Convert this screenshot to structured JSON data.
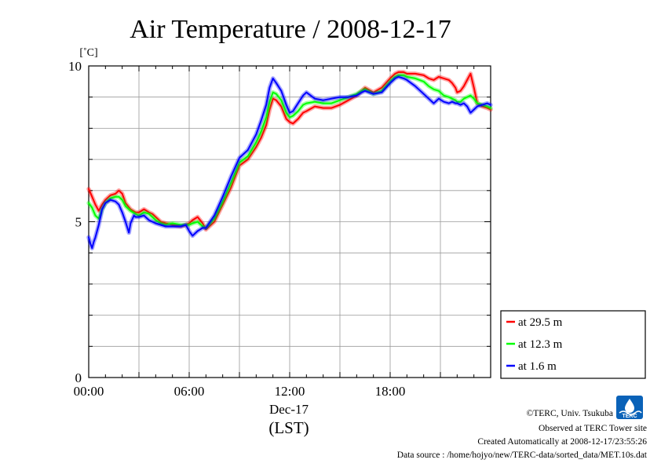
{
  "chart_data": {
    "type": "line",
    "title": "Air Temperature / 2008-12-17",
    "ylabel": "[˚C]",
    "xlabel_date": "Dec-17",
    "xlabel_unit": "(LST)",
    "ylim": [
      0,
      10
    ],
    "xlim": [
      0,
      24
    ],
    "x_ticks": [
      {
        "value": 0,
        "label": "00:00"
      },
      {
        "value": 6,
        "label": "06:00"
      },
      {
        "value": 12,
        "label": "12:00"
      },
      {
        "value": 18,
        "label": "18:00"
      }
    ],
    "y_ticks": [
      {
        "value": 0,
        "label": "0"
      },
      {
        "value": 5,
        "label": "5"
      },
      {
        "value": 10,
        "label": "10"
      }
    ],
    "grid": true,
    "legend_position": "lower-right-outside",
    "series": [
      {
        "name": "at 29.5 m",
        "color": "#ff0000",
        "x": [
          0,
          0.2,
          0.4,
          0.6,
          0.8,
          1,
          1.3,
          1.6,
          1.8,
          2,
          2.2,
          2.5,
          2.8,
          3,
          3.3,
          3.6,
          3.8,
          4,
          4.3,
          4.6,
          5,
          5.5,
          5.8,
          6,
          6.2,
          6.5,
          6.8,
          7,
          7.5,
          8,
          8.5,
          9,
          9.5,
          10,
          10.3,
          10.6,
          10.8,
          11,
          11.2,
          11.5,
          11.8,
          12,
          12.2,
          12.5,
          12.8,
          13,
          13.5,
          14,
          14.5,
          15,
          15.5,
          16,
          16.3,
          16.5,
          17,
          17.5,
          18,
          18.3,
          18.5,
          18.8,
          19,
          19.5,
          20,
          20.3,
          20.6,
          20.9,
          21.2,
          21.5,
          21.7,
          21.9,
          22,
          22.2,
          22.4,
          22.6,
          22.8,
          23,
          23.2,
          23.5,
          23.8,
          24
        ],
        "values": [
          6.05,
          5.8,
          5.55,
          5.35,
          5.55,
          5.7,
          5.85,
          5.9,
          6.0,
          5.9,
          5.6,
          5.4,
          5.3,
          5.3,
          5.4,
          5.3,
          5.25,
          5.15,
          5.0,
          4.95,
          4.9,
          4.85,
          4.9,
          4.95,
          5.05,
          5.15,
          4.95,
          4.75,
          5.0,
          5.55,
          6.1,
          6.8,
          7.0,
          7.4,
          7.7,
          8.1,
          8.6,
          8.95,
          8.9,
          8.7,
          8.3,
          8.2,
          8.15,
          8.3,
          8.5,
          8.55,
          8.7,
          8.65,
          8.65,
          8.75,
          8.9,
          9.05,
          9.2,
          9.3,
          9.15,
          9.3,
          9.6,
          9.75,
          9.8,
          9.8,
          9.75,
          9.75,
          9.7,
          9.6,
          9.55,
          9.65,
          9.6,
          9.55,
          9.45,
          9.3,
          9.15,
          9.2,
          9.35,
          9.55,
          9.75,
          9.3,
          8.8,
          8.7,
          8.65,
          8.6
        ]
      },
      {
        "name": "at 12.3 m",
        "color": "#00ff00",
        "x": [
          0,
          0.2,
          0.4,
          0.6,
          0.8,
          1,
          1.3,
          1.6,
          1.8,
          2,
          2.2,
          2.5,
          2.8,
          3,
          3.3,
          3.6,
          3.8,
          4,
          4.3,
          4.6,
          5,
          5.5,
          5.8,
          6,
          6.2,
          6.5,
          6.8,
          7,
          7.5,
          8,
          8.5,
          9,
          9.5,
          10,
          10.3,
          10.6,
          10.8,
          11,
          11.2,
          11.5,
          11.8,
          12,
          12.2,
          12.5,
          12.8,
          13,
          13.5,
          14,
          14.5,
          15,
          15.5,
          16,
          16.3,
          16.5,
          17,
          17.5,
          18,
          18.3,
          18.5,
          18.8,
          19,
          19.5,
          20,
          20.3,
          20.6,
          20.9,
          21.2,
          21.5,
          21.7,
          21.9,
          22,
          22.2,
          22.4,
          22.6,
          22.8,
          23,
          23.2,
          23.5,
          23.8,
          24
        ],
        "values": [
          5.6,
          5.45,
          5.2,
          5.1,
          5.4,
          5.6,
          5.75,
          5.8,
          5.8,
          5.7,
          5.5,
          5.35,
          5.25,
          5.2,
          5.3,
          5.25,
          5.15,
          5.05,
          4.95,
          4.9,
          4.95,
          4.9,
          4.9,
          4.9,
          4.95,
          5.0,
          4.85,
          4.8,
          5.1,
          5.65,
          6.25,
          6.9,
          7.1,
          7.55,
          7.9,
          8.35,
          8.85,
          9.15,
          9.1,
          8.9,
          8.5,
          8.35,
          8.4,
          8.55,
          8.75,
          8.8,
          8.85,
          8.8,
          8.8,
          8.9,
          9.0,
          9.1,
          9.2,
          9.25,
          9.1,
          9.2,
          9.5,
          9.65,
          9.7,
          9.7,
          9.65,
          9.6,
          9.5,
          9.35,
          9.25,
          9.2,
          9.05,
          9.0,
          8.95,
          8.9,
          8.85,
          8.85,
          8.95,
          9.0,
          9.05,
          8.95,
          8.8,
          8.75,
          8.7,
          8.65
        ]
      },
      {
        "name": "at 1.6 m",
        "color": "#0000ff",
        "x": [
          0,
          0.1,
          0.2,
          0.3,
          0.4,
          0.6,
          0.8,
          1,
          1.3,
          1.6,
          1.8,
          2,
          2.2,
          2.4,
          2.5,
          2.7,
          2.8,
          3,
          3.3,
          3.6,
          3.8,
          4,
          4.3,
          4.6,
          5,
          5.5,
          5.8,
          6,
          6.2,
          6.5,
          6.8,
          7,
          7.5,
          8,
          8.5,
          9,
          9.5,
          10,
          10.3,
          10.6,
          10.8,
          11,
          11.2,
          11.5,
          11.8,
          12,
          12.2,
          12.5,
          12.8,
          13,
          13.5,
          14,
          14.5,
          15,
          15.5,
          16,
          16.3,
          16.5,
          17,
          17.5,
          18,
          18.3,
          18.5,
          18.8,
          19,
          19.5,
          20,
          20.3,
          20.6,
          20.9,
          21.2,
          21.5,
          21.7,
          21.9,
          22,
          22.2,
          22.4,
          22.6,
          22.8,
          23,
          23.2,
          23.5,
          23.8,
          24
        ],
        "values": [
          4.5,
          4.3,
          4.15,
          4.35,
          4.5,
          4.9,
          5.4,
          5.6,
          5.7,
          5.65,
          5.55,
          5.3,
          5.0,
          4.65,
          4.95,
          5.2,
          5.15,
          5.15,
          5.2,
          5.05,
          5.0,
          4.95,
          4.9,
          4.85,
          4.85,
          4.85,
          4.9,
          4.7,
          4.55,
          4.7,
          4.8,
          4.8,
          5.2,
          5.8,
          6.45,
          7.05,
          7.3,
          7.8,
          8.25,
          8.75,
          9.3,
          9.6,
          9.45,
          9.2,
          8.75,
          8.5,
          8.55,
          8.8,
          9.05,
          9.15,
          8.95,
          8.9,
          8.95,
          9.0,
          9.0,
          9.05,
          9.15,
          9.2,
          9.1,
          9.15,
          9.45,
          9.6,
          9.65,
          9.6,
          9.55,
          9.35,
          9.1,
          8.95,
          8.8,
          8.95,
          8.85,
          8.8,
          8.85,
          8.8,
          8.8,
          8.75,
          8.8,
          8.7,
          8.5,
          8.6,
          8.7,
          8.75,
          8.8,
          8.75
        ]
      }
    ]
  },
  "credits": {
    "copyright": "©TERC, Univ. Tsukuba",
    "site": "Observed at TERC Tower site",
    "created": "Created Automatically at 2008-12-17/23:55:26",
    "source": "Data source : /home/hojyo/new/TERC-data/sorted_data/MET.10s.dat",
    "logo_text": "TERC"
  }
}
